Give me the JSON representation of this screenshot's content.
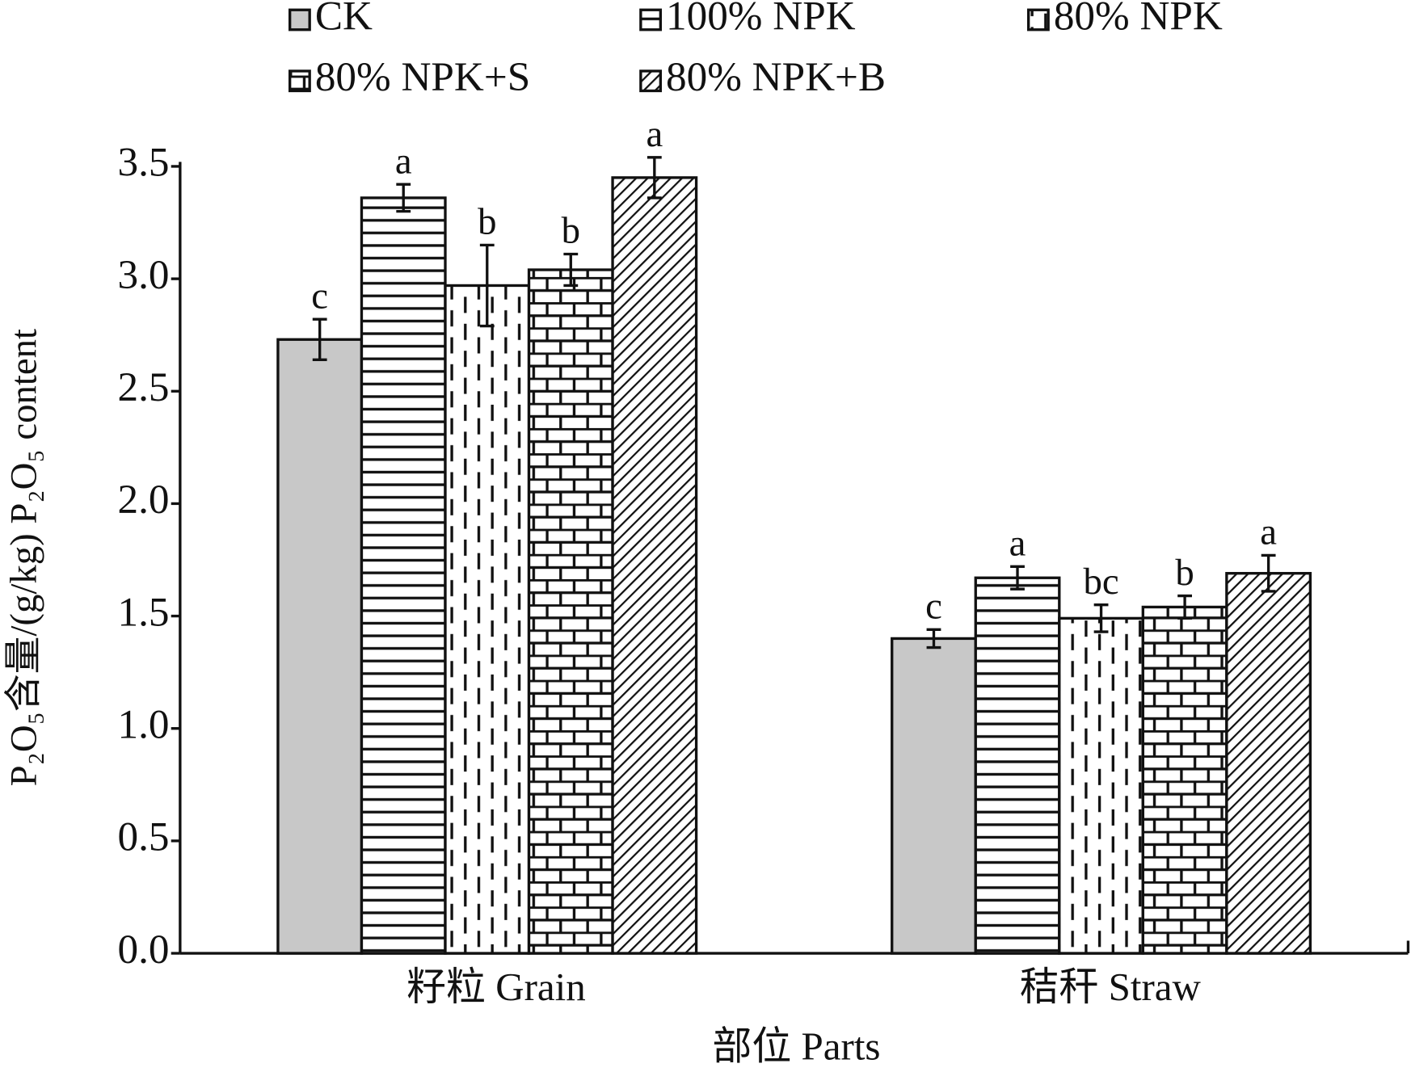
{
  "chart_data": {
    "type": "bar",
    "categories": [
      "籽粒 Grain",
      "秸秆 Straw"
    ],
    "x_label": "部位 Parts",
    "y_label": "P₂O₅含量/(g/kg) P₂O₅ content",
    "ylim": [
      0,
      3.5
    ],
    "yticks": [
      {
        "value": 0,
        "label": "0.0"
      },
      0.5,
      {
        "value": 1,
        "label": "1.0"
      },
      1.5,
      {
        "value": 2,
        "label": "2.0"
      },
      2.5,
      {
        "value": 3,
        "label": "3.0"
      },
      3.5
    ],
    "series": [
      {
        "name": "CK",
        "color": "#c8c8c8",
        "hatch": "solid",
        "values": [
          2.73,
          1.4
        ],
        "errors": [
          0.09,
          0.04
        ],
        "letters": [
          "c",
          "c"
        ]
      },
      {
        "name": "100% NPK",
        "color": "#111111",
        "hatch": "horizontal",
        "values": [
          3.36,
          1.67
        ],
        "errors": [
          0.06,
          0.05
        ],
        "letters": [
          "a",
          "a"
        ]
      },
      {
        "name": "80% NPK",
        "color": "#111111",
        "hatch": "dashed-vertical",
        "values": [
          2.97,
          1.49
        ],
        "errors": [
          0.18,
          0.06
        ],
        "letters": [
          "b",
          "bc"
        ]
      },
      {
        "name": "80% NPK+S",
        "color": "#111111",
        "hatch": "brick",
        "values": [
          3.04,
          1.54
        ],
        "errors": [
          0.07,
          0.05
        ],
        "letters": [
          "b",
          "b"
        ]
      },
      {
        "name": "80% NPK+B",
        "color": "#111111",
        "hatch": "diagonal",
        "values": [
          3.45,
          1.69
        ],
        "errors": [
          0.09,
          0.08
        ],
        "letters": [
          "a",
          "a"
        ]
      }
    ]
  }
}
